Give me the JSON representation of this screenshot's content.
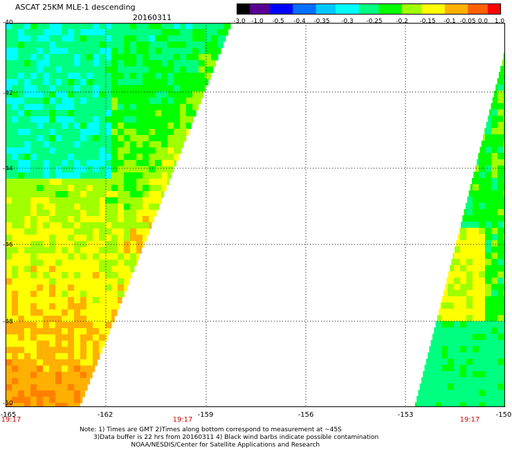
{
  "header": {
    "title": "ASCAT 25KM MLE-1 descending",
    "date": "20160311"
  },
  "colorbar": {
    "labels": [
      "-3.0",
      "-1.0",
      "-0.5",
      "-0.4",
      "-0.35",
      "-0.3",
      "-0.25",
      "-0.2",
      "-0.15",
      "-0.1",
      "-0.05",
      "0.0",
      "1.0"
    ],
    "colors": [
      "#000000",
      "#5a0090",
      "#0000ff",
      "#0070ff",
      "#00c8ff",
      "#00ffff",
      "#00ff80",
      "#00ff00",
      "#a0ff00",
      "#ffff00",
      "#ffb000",
      "#ff6000",
      "#ff0000"
    ]
  },
  "axes": {
    "lat_labels": [
      "-40",
      "-42",
      "-44",
      "-46",
      "-48",
      "-50"
    ],
    "lon_labels": [
      "-165",
      "-162",
      "-159",
      "-156",
      "-153",
      "-150"
    ],
    "time_labels": [
      "19:17",
      "19:17",
      "19:17"
    ]
  },
  "notes": {
    "line1": "Note: 1) Times are GMT 2)Times along bottom correspond to measurement at ~45S",
    "line2": "3)Data buffer is 22 hrs from 20160311 4) Black wind barbs indicate possible contamination",
    "line3": "NOAA/NESDIS/Center for Satellite Applications and Research"
  },
  "map_style": {
    "grid": "dotted",
    "swaths": [
      "left",
      "right"
    ],
    "palette": [
      "#00ffff",
      "#00ff80",
      "#00ff00",
      "#a0ff00",
      "#ffff00",
      "#ffb000",
      "#ff8000"
    ]
  }
}
